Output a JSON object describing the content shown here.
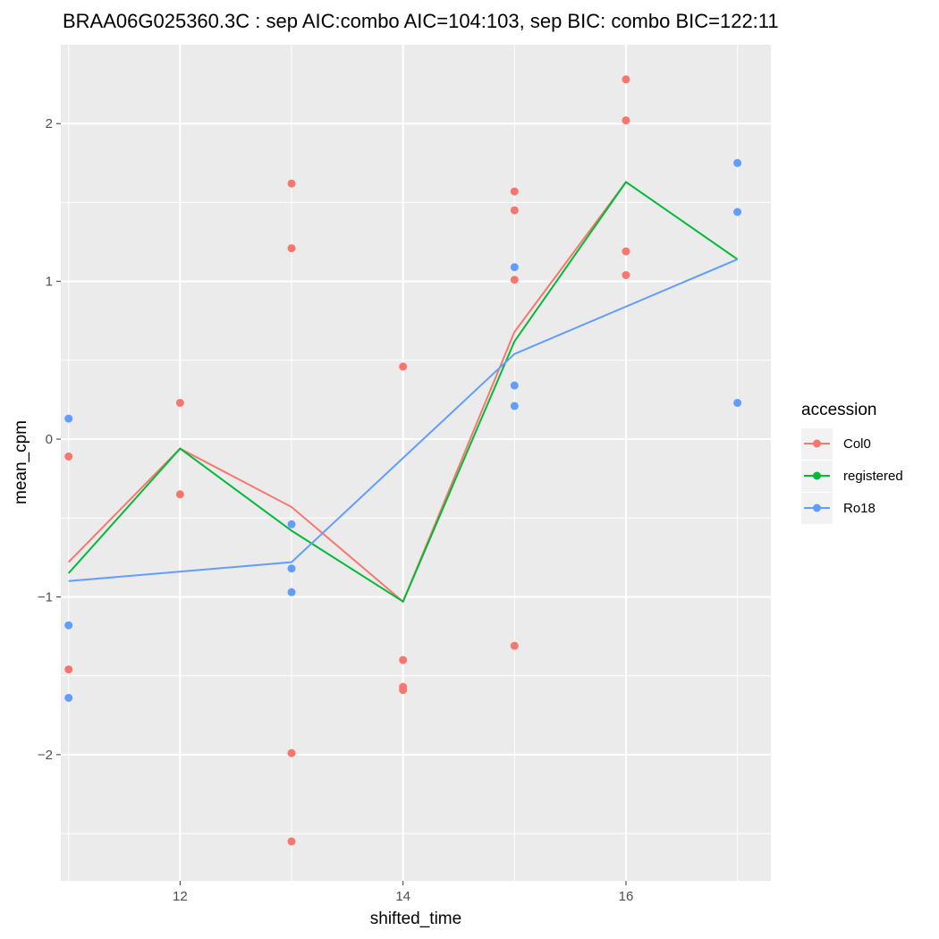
{
  "chart_data": {
    "type": "scatter",
    "title": "BRAA06G025360.3C : sep AIC:combo AIC=104:103, sep BIC: combo BIC=122:11",
    "xlabel": "shifted_time",
    "ylabel": "mean_cpm",
    "xlim": [
      10.93,
      17.3
    ],
    "ylim": [
      -2.8,
      2.5
    ],
    "x_ticks": [
      12,
      14,
      16
    ],
    "x_tick_labels": [
      "12",
      "14",
      "16"
    ],
    "x_minor_ticks": [
      11,
      13,
      15,
      17
    ],
    "y_ticks": [
      -2,
      -1,
      0,
      1,
      2
    ],
    "y_tick_labels": [
      "−2",
      "−1",
      "0",
      "1",
      "2"
    ],
    "y_minor_ticks": [
      -2.5,
      -1.5,
      -0.5,
      0.5,
      1.5
    ],
    "grid": true,
    "legend": {
      "title": "accession",
      "position": "right",
      "entries": [
        {
          "label": "Col0",
          "color": "#F8766D"
        },
        {
          "label": "registered",
          "color": "#00BA38"
        },
        {
          "label": "Ro18",
          "color": "#619CFF"
        }
      ]
    },
    "points": [
      {
        "series": "Col0",
        "x": 11,
        "y": -0.11
      },
      {
        "series": "Col0",
        "x": 11,
        "y": -1.46
      },
      {
        "series": "Col0",
        "x": 12,
        "y": 0.23
      },
      {
        "series": "Col0",
        "x": 12,
        "y": -0.35
      },
      {
        "series": "Col0",
        "x": 13,
        "y": 1.62
      },
      {
        "series": "Col0",
        "x": 13,
        "y": 1.21
      },
      {
        "series": "Col0",
        "x": 13,
        "y": -1.99
      },
      {
        "series": "Col0",
        "x": 13,
        "y": -2.55
      },
      {
        "series": "Col0",
        "x": 14,
        "y": 0.46
      },
      {
        "series": "Col0",
        "x": 14,
        "y": -1.4
      },
      {
        "series": "Col0",
        "x": 14,
        "y": -1.57
      },
      {
        "series": "Col0",
        "x": 14,
        "y": -1.59
      },
      {
        "series": "Col0",
        "x": 15,
        "y": 1.57
      },
      {
        "series": "Col0",
        "x": 15,
        "y": 1.45
      },
      {
        "series": "Col0",
        "x": 15,
        "y": 1.01
      },
      {
        "series": "Col0",
        "x": 15,
        "y": -1.31
      },
      {
        "series": "Col0",
        "x": 16,
        "y": 2.28
      },
      {
        "series": "Col0",
        "x": 16,
        "y": 2.02
      },
      {
        "series": "Col0",
        "x": 16,
        "y": 1.19
      },
      {
        "series": "Col0",
        "x": 16,
        "y": 1.04
      },
      {
        "series": "Ro18",
        "x": 11,
        "y": 0.13
      },
      {
        "series": "Ro18",
        "x": 11,
        "y": -1.18
      },
      {
        "series": "Ro18",
        "x": 11,
        "y": -1.64
      },
      {
        "series": "Ro18",
        "x": 13,
        "y": -0.54
      },
      {
        "series": "Ro18",
        "x": 13,
        "y": -0.82
      },
      {
        "series": "Ro18",
        "x": 13,
        "y": -0.97
      },
      {
        "series": "Ro18",
        "x": 15,
        "y": 1.09
      },
      {
        "series": "Ro18",
        "x": 15,
        "y": 0.34
      },
      {
        "series": "Ro18",
        "x": 15,
        "y": 0.21
      },
      {
        "series": "Ro18",
        "x": 17,
        "y": 1.75
      },
      {
        "series": "Ro18",
        "x": 17,
        "y": 1.44
      },
      {
        "series": "Ro18",
        "x": 17,
        "y": 0.23
      }
    ],
    "lines": [
      {
        "series": "Col0",
        "color": "#F8766D",
        "x": [
          11,
          12,
          13,
          14,
          15,
          16
        ],
        "y": [
          -0.78,
          -0.06,
          -0.43,
          -1.03,
          0.68,
          1.63
        ]
      },
      {
        "series": "registered",
        "color": "#00BA38",
        "x": [
          11,
          12,
          13,
          14,
          15,
          16,
          17
        ],
        "y": [
          -0.85,
          -0.06,
          -0.58,
          -1.03,
          0.62,
          1.63,
          1.14
        ]
      },
      {
        "series": "Ro18",
        "color": "#619CFF",
        "x": [
          11,
          13,
          15,
          17
        ],
        "y": [
          -0.9,
          -0.78,
          0.54,
          1.14
        ]
      }
    ]
  }
}
